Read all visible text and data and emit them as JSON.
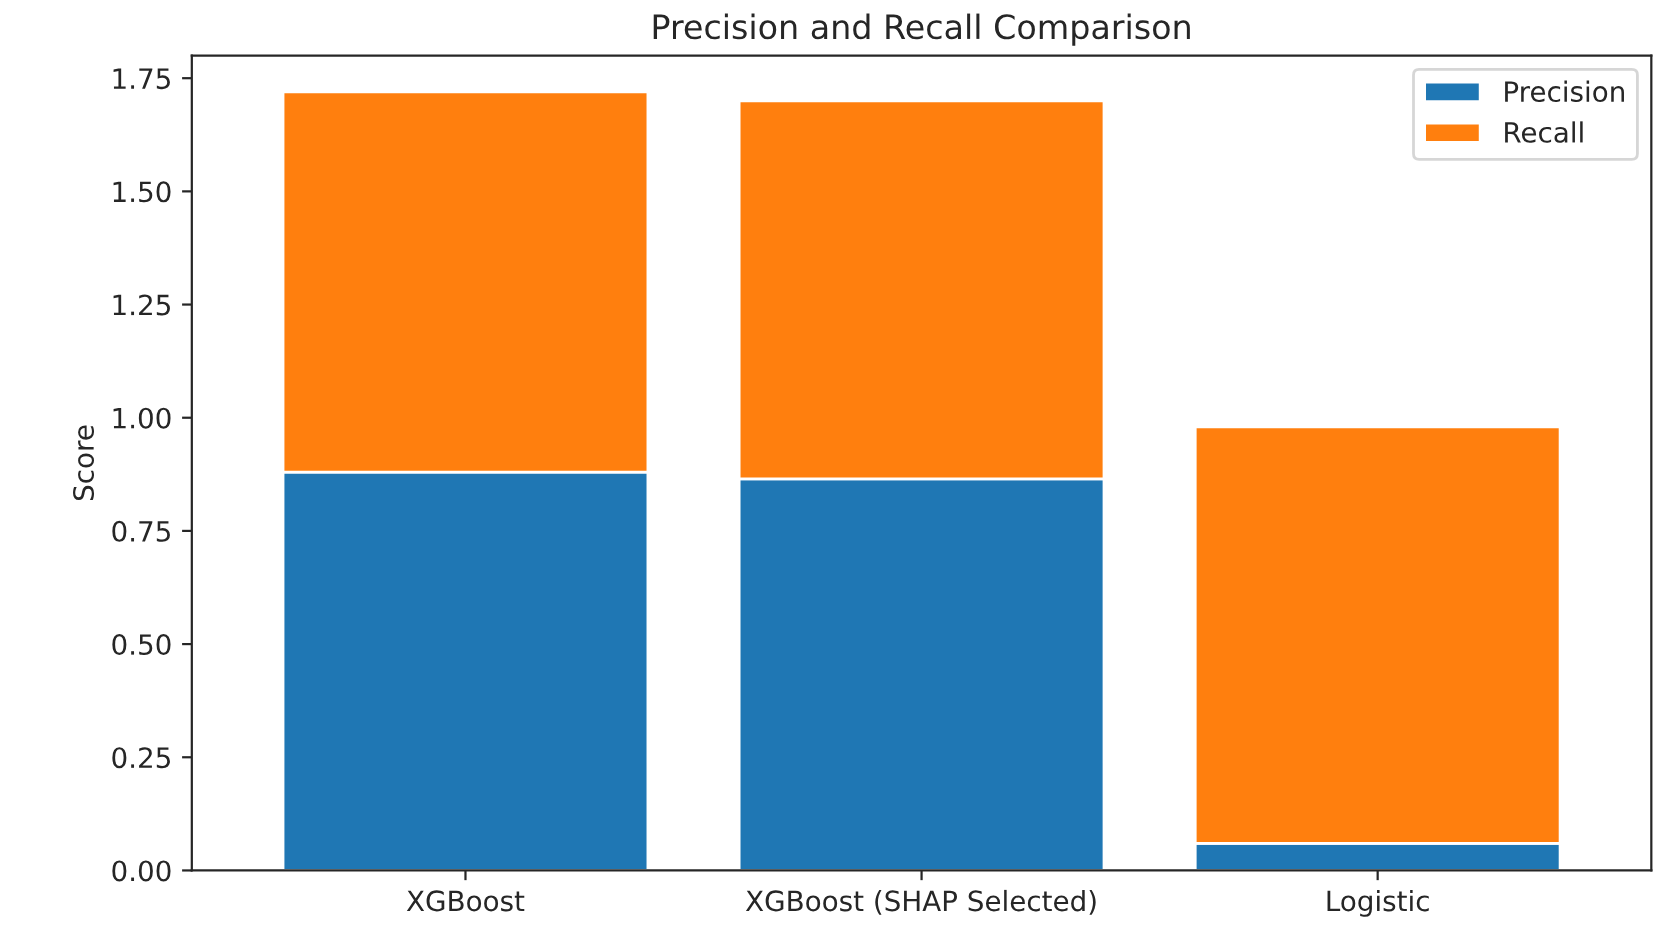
{
  "chart_data": {
    "type": "bar",
    "title": "Precision and Recall Comparison",
    "ylabel": "Score",
    "categories": [
      "XGBoost",
      "XGBoost (SHAP Selected)",
      "Logistic"
    ],
    "stacked": true,
    "series": [
      {
        "name": "Precision",
        "color": "#1f77b4",
        "values": [
          0.88,
          0.865,
          0.06
        ]
      },
      {
        "name": "Recall",
        "color": "#ff7f0e",
        "values": [
          0.84,
          0.835,
          0.92
        ]
      }
    ],
    "ylim": [
      0,
      1.8
    ],
    "yticks": [
      {
        "value": 0,
        "label": "0.00"
      },
      {
        "value": 0.25,
        "label": "0.25"
      },
      {
        "value": 0.5,
        "label": "0.50"
      },
      {
        "value": 0.75,
        "label": "0.75"
      },
      {
        "value": 1.0,
        "label": "1.00"
      },
      {
        "value": 1.25,
        "label": "1.25"
      },
      {
        "value": 1.5,
        "label": "1.50"
      },
      {
        "value": 1.75,
        "label": "1.75"
      }
    ],
    "legend": "top right",
    "grid": false
  }
}
